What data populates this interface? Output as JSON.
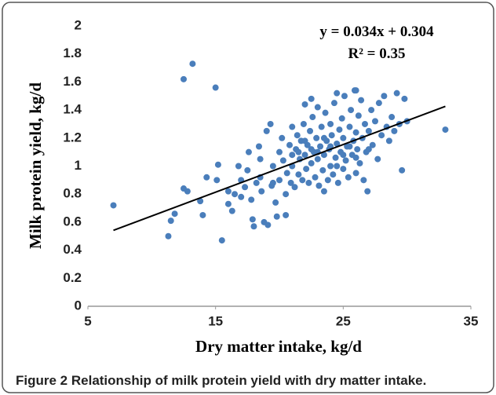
{
  "chart_data": {
    "type": "scatter",
    "x_label": "Dry matter intake, kg/d",
    "y_label": "Milk protein yield, kg/d",
    "equation": "y = 0.034x + 0.304",
    "r_squared": "R² = 0.35",
    "trendline": {
      "slope": 0.034,
      "intercept": 0.304,
      "color": "#000000"
    },
    "color": "#4a7ebb",
    "x": [
      7,
      11.3,
      11.5,
      11.8,
      12.5,
      13.2,
      12.8,
      12.5,
      15,
      15.5,
      14,
      13.8,
      14.3,
      15.2,
      15.1,
      16,
      16.3,
      16.5,
      16.8,
      17,
      17.3,
      17.5,
      17.6,
      17.8,
      17.9,
      18,
      18.2,
      18.4,
      18.5,
      18.6,
      18.8,
      19,
      19.1,
      19.3,
      19.4,
      19.5,
      19.7,
      19.8,
      20,
      20,
      20.2,
      20.3,
      20.5,
      20.6,
      20.8,
      20.9,
      21,
      21,
      21.2,
      21.3,
      21.4,
      21.5,
      21.6,
      21.7,
      21.8,
      21.9,
      22,
      22,
      22.1,
      22.2,
      22.3,
      22.4,
      22.5,
      22.6,
      22.7,
      22.8,
      22.9,
      23,
      23,
      23.1,
      23.2,
      23.3,
      23.4,
      23.5,
      23.6,
      23.7,
      23.8,
      23.9,
      24,
      24,
      24.1,
      24.2,
      24.3,
      24.4,
      24.5,
      24.6,
      24.7,
      24.8,
      24.9,
      25,
      25,
      25.1,
      25.2,
      25.3,
      25.4,
      25.5,
      25.6,
      25.7,
      25.8,
      25.9,
      26,
      26,
      26.1,
      26.2,
      26.3,
      26.4,
      26.5,
      26.6,
      26.7,
      26.8,
      26.9,
      27,
      27.2,
      27.3,
      27.5,
      27.7,
      27.8,
      28,
      28.2,
      28.4,
      28.6,
      28.8,
      29,
      29.2,
      29.4,
      29.6,
      29.8,
      30,
      33,
      22.5,
      23.5,
      24.5,
      26,
      20.5,
      19.5,
      21,
      22,
      23,
      24,
      25,
      26,
      22.5,
      23.5,
      24.5,
      25.5,
      21.5,
      18.5,
      17,
      16,
      27
    ],
    "values": [
      0.72,
      0.5,
      0.61,
      0.66,
      1.62,
      1.73,
      0.82,
      0.84,
      1.56,
      0.47,
      0.65,
      0.75,
      0.92,
      1.01,
      0.9,
      0.73,
      0.68,
      0.8,
      1,
      0.9,
      0.85,
      0.97,
      1.1,
      0.76,
      0.62,
      0.57,
      0.88,
      1.14,
      0.92,
      0.82,
      0.6,
      1.25,
      0.58,
      1.3,
      0.86,
      1,
      0.74,
      0.64,
      1.1,
      0.9,
      1.2,
      1.04,
      0.8,
      0.95,
      1.15,
      0.88,
      1.28,
      1,
      0.85,
      1.12,
      1.22,
      0.94,
      1.05,
      1.18,
      0.9,
      1.3,
      1.08,
      1.44,
      0.98,
      1.15,
      0.88,
      1.25,
      1.02,
      1.35,
      1.1,
      0.92,
      1.2,
      1.05,
      1.42,
      0.86,
      1.14,
      1.28,
      0.97,
      1.08,
      1.38,
      1.18,
      0.9,
      1.12,
      1,
      1.3,
      1.22,
      0.94,
      1.45,
      1.06,
      1.16,
      0.88,
      1.26,
      1.1,
      1.34,
      0.98,
      1.2,
      1.5,
      1.04,
      1.14,
      0.92,
      1.28,
      1.4,
      1.08,
      1.18,
      1.54,
      0.95,
      1.24,
      1.12,
      1.36,
      1.02,
      1.47,
      1.2,
      0.9,
      1.3,
      1.1,
      0.82,
      1.25,
      1.4,
      1.15,
      1.32,
      1.05,
      1.45,
      1.22,
      1.5,
      1.28,
      1.18,
      1.35,
      1.25,
      1.52,
      1.3,
      0.97,
      1.48,
      1.32,
      1.26,
      1.48,
      0.82,
      1.52,
      1.54,
      0.65,
      0.88,
      1.08,
      1.18,
      1.1,
      1.14,
      1.08,
      1.06,
      1.12,
      1.2,
      1,
      1.14,
      1.1,
      1.05,
      0.78,
      0.82,
      1.12
    ],
    "xlim": [
      5,
      35
    ],
    "xticks": [
      5,
      15,
      25,
      35
    ],
    "ylim": [
      0,
      2
    ],
    "yticks": [
      0,
      0.2,
      0.4,
      0.6,
      0.8,
      1,
      1.2,
      1.4,
      1.6,
      1.8,
      2
    ]
  },
  "caption": {
    "label": "Figure 2",
    "text": "Relationship of milk protein yield with dry matter intake."
  }
}
